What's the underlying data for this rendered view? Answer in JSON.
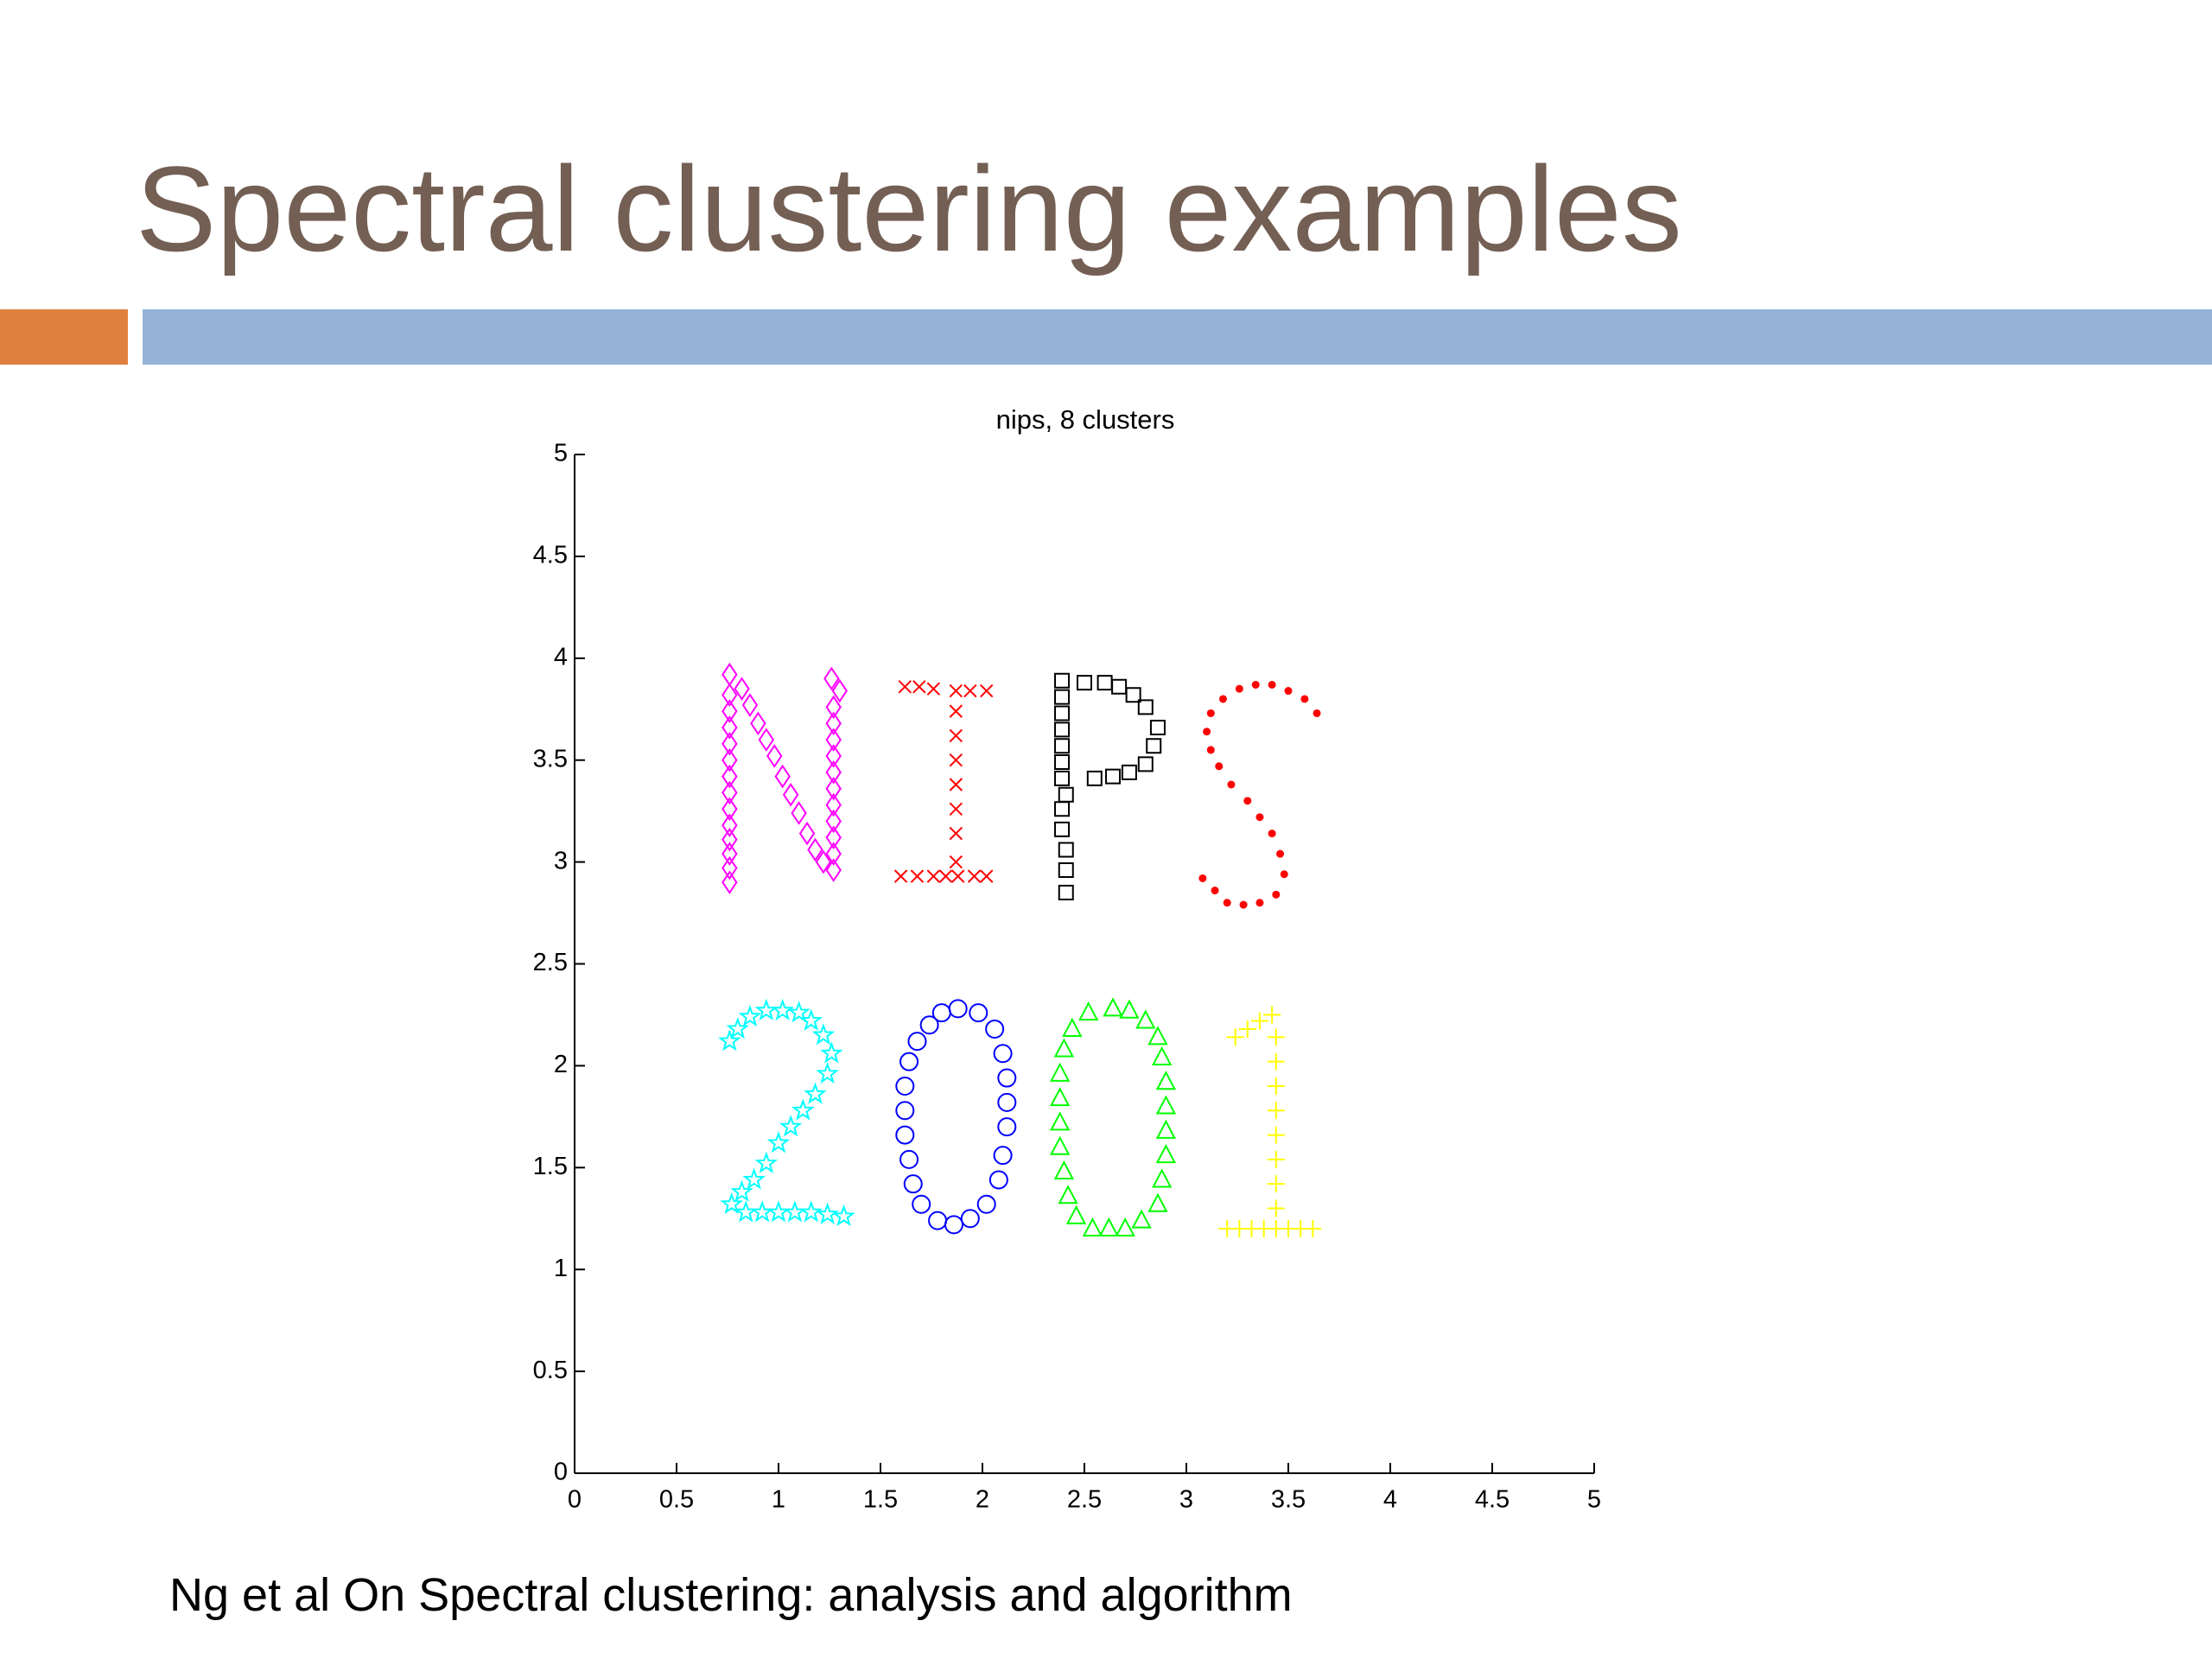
{
  "slide": {
    "title": "Spectral clustering examples",
    "caption": "Ng et al On Spectral clustering: analysis and algorithm"
  },
  "chart_data": {
    "type": "scatter",
    "title": "nips, 8 clusters",
    "xlim": [
      0,
      5
    ],
    "ylim": [
      0,
      5
    ],
    "xticks": [
      0,
      0.5,
      1,
      1.5,
      2,
      2.5,
      3,
      3.5,
      4,
      4.5,
      5
    ],
    "yticks": [
      0,
      0.5,
      1,
      1.5,
      2,
      2.5,
      3,
      3.5,
      4,
      4.5,
      5
    ],
    "series": [
      {
        "color": "#ff00ff",
        "marker": "diamond",
        "x": [
          0.76,
          0.76,
          0.76,
          0.76,
          0.76,
          0.76,
          0.76,
          0.76,
          0.76,
          0.76,
          0.76,
          0.76,
          0.76,
          0.76,
          0.82,
          0.86,
          0.9,
          0.94,
          0.98,
          1.02,
          1.06,
          1.1,
          1.14,
          1.18,
          1.22,
          1.27,
          1.27,
          1.27,
          1.27,
          1.27,
          1.27,
          1.27,
          1.27,
          1.27,
          1.27,
          1.27,
          1.3,
          1.26
        ],
        "y": [
          2.9,
          2.97,
          3.04,
          3.11,
          3.18,
          3.26,
          3.34,
          3.42,
          3.5,
          3.58,
          3.66,
          3.74,
          3.82,
          3.92,
          3.85,
          3.77,
          3.68,
          3.6,
          3.52,
          3.42,
          3.33,
          3.24,
          3.14,
          3.06,
          3.0,
          2.96,
          3.04,
          3.12,
          3.2,
          3.28,
          3.36,
          3.44,
          3.52,
          3.6,
          3.68,
          3.76,
          3.84,
          3.9
        ]
      },
      {
        "color": "#ff0000",
        "marker": "x",
        "x": [
          1.62,
          1.69,
          1.76,
          1.87,
          1.94,
          2.02,
          1.87,
          1.87,
          1.87,
          1.87,
          1.87,
          1.87,
          1.87,
          1.6,
          1.68,
          1.76,
          1.82,
          1.88,
          1.96,
          2.02
        ],
        "y": [
          3.86,
          3.86,
          3.85,
          3.84,
          3.84,
          3.84,
          3.74,
          3.62,
          3.5,
          3.38,
          3.26,
          3.14,
          3.0,
          2.93,
          2.93,
          2.93,
          2.93,
          2.93,
          2.93,
          2.93
        ]
      },
      {
        "color": "#000000",
        "marker": "square",
        "x": [
          2.39,
          2.39,
          2.39,
          2.39,
          2.39,
          2.39,
          2.39,
          2.41,
          2.39,
          2.39,
          2.41,
          2.41,
          2.41,
          2.5,
          2.6,
          2.67,
          2.74,
          2.8,
          2.86,
          2.84,
          2.8,
          2.72,
          2.64,
          2.55
        ],
        "y": [
          3.89,
          3.81,
          3.73,
          3.65,
          3.57,
          3.49,
          3.41,
          3.33,
          3.26,
          3.16,
          3.06,
          2.96,
          2.85,
          3.88,
          3.88,
          3.86,
          3.82,
          3.76,
          3.66,
          3.57,
          3.48,
          3.44,
          3.42,
          3.41
        ]
      },
      {
        "color": "#ff0000",
        "marker": "dot",
        "x": [
          3.64,
          3.58,
          3.5,
          3.42,
          3.34,
          3.26,
          3.18,
          3.12,
          3.1,
          3.12,
          3.16,
          3.22,
          3.3,
          3.36,
          3.42,
          3.46,
          3.48,
          3.44,
          3.36,
          3.28,
          3.2,
          3.14,
          3.08
        ],
        "y": [
          3.73,
          3.8,
          3.84,
          3.87,
          3.87,
          3.85,
          3.8,
          3.73,
          3.64,
          3.55,
          3.47,
          3.38,
          3.3,
          3.22,
          3.14,
          3.04,
          2.94,
          2.84,
          2.8,
          2.79,
          2.8,
          2.86,
          2.92
        ]
      },
      {
        "color": "#00ffff",
        "marker": "star",
        "x": [
          0.76,
          0.8,
          0.86,
          0.94,
          1.02,
          1.1,
          1.16,
          1.22,
          1.26,
          1.24,
          1.18,
          1.12,
          1.06,
          1.0,
          0.94,
          0.88,
          0.82,
          0.77,
          0.84,
          0.92,
          1.0,
          1.08,
          1.16,
          1.24,
          1.32
        ],
        "y": [
          2.12,
          2.18,
          2.24,
          2.27,
          2.27,
          2.26,
          2.22,
          2.15,
          2.06,
          1.96,
          1.86,
          1.78,
          1.7,
          1.62,
          1.52,
          1.44,
          1.38,
          1.32,
          1.28,
          1.28,
          1.28,
          1.28,
          1.28,
          1.27,
          1.26
        ]
      },
      {
        "color": "#0000ff",
        "marker": "circle",
        "x": [
          1.88,
          1.98,
          2.06,
          2.1,
          2.12,
          2.12,
          2.12,
          2.1,
          2.08,
          2.02,
          1.94,
          1.86,
          1.78,
          1.7,
          1.66,
          1.64,
          1.62,
          1.62,
          1.62,
          1.64,
          1.68,
          1.74,
          1.8
        ],
        "y": [
          2.28,
          2.26,
          2.18,
          2.06,
          1.94,
          1.82,
          1.7,
          1.56,
          1.44,
          1.32,
          1.25,
          1.22,
          1.24,
          1.32,
          1.42,
          1.54,
          1.66,
          1.78,
          1.9,
          2.02,
          2.12,
          2.2,
          2.26
        ]
      },
      {
        "color": "#00ff00",
        "marker": "triangle",
        "x": [
          2.64,
          2.72,
          2.8,
          2.86,
          2.88,
          2.9,
          2.9,
          2.9,
          2.9,
          2.88,
          2.86,
          2.78,
          2.7,
          2.62,
          2.54,
          2.46,
          2.42,
          2.4,
          2.38,
          2.38,
          2.38,
          2.38,
          2.4,
          2.44,
          2.52
        ],
        "y": [
          2.28,
          2.27,
          2.22,
          2.14,
          2.04,
          1.92,
          1.8,
          1.68,
          1.56,
          1.44,
          1.32,
          1.24,
          1.2,
          1.2,
          1.2,
          1.26,
          1.36,
          1.48,
          1.6,
          1.72,
          1.84,
          1.96,
          2.08,
          2.18,
          2.26
        ]
      },
      {
        "color": "#ffff00",
        "marker": "plus",
        "x": [
          3.24,
          3.3,
          3.36,
          3.42,
          3.44,
          3.44,
          3.44,
          3.44,
          3.44,
          3.44,
          3.44,
          3.44,
          3.44,
          3.2,
          3.26,
          3.32,
          3.38,
          3.5,
          3.56,
          3.62
        ],
        "y": [
          2.14,
          2.18,
          2.22,
          2.25,
          2.14,
          2.02,
          1.9,
          1.78,
          1.66,
          1.54,
          1.42,
          1.3,
          1.2,
          1.2,
          1.2,
          1.2,
          1.2,
          1.2,
          1.2,
          1.2
        ]
      }
    ]
  }
}
